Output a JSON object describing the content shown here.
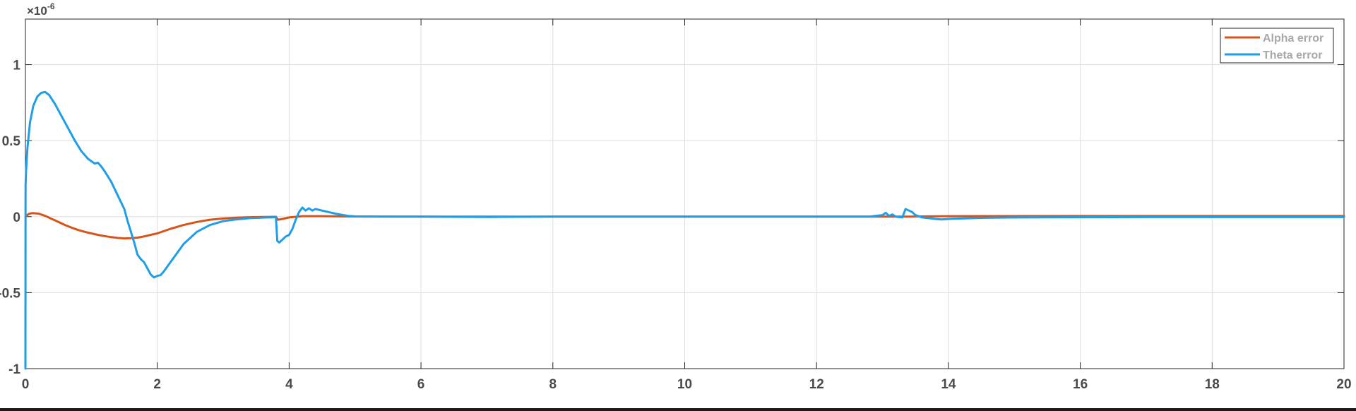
{
  "chart_data": {
    "type": "line",
    "title": "",
    "xlabel": "",
    "ylabel": "",
    "xlim": [
      0,
      20
    ],
    "ylim": [
      -1,
      1.3
    ],
    "xticks": [
      0,
      2,
      4,
      6,
      8,
      10,
      12,
      14,
      16,
      18,
      20
    ],
    "yticks": [
      -1,
      -0.5,
      0,
      0.5,
      1
    ],
    "ytick_labels": [
      "-1",
      "-0.5",
      "0",
      "0.5",
      "1"
    ],
    "y_exponent_label": "×10",
    "y_exponent_power": "-6",
    "grid": true,
    "legend_position": "top-right",
    "series": [
      {
        "name": "Alpha error",
        "color": "#d95319",
        "x": [
          0,
          0.05,
          0.1,
          0.2,
          0.3,
          0.4,
          0.5,
          0.6,
          0.7,
          0.8,
          0.9,
          1.0,
          1.1,
          1.2,
          1.3,
          1.4,
          1.5,
          1.6,
          1.7,
          1.8,
          1.9,
          2.0,
          2.2,
          2.4,
          2.6,
          2.8,
          3.0,
          3.2,
          3.4,
          3.6,
          3.8,
          3.83,
          3.9,
          4.0,
          4.2,
          4.5,
          5.0,
          6,
          8,
          10,
          12,
          13.0,
          13.4,
          13.7,
          14,
          16,
          18,
          20
        ],
        "y": [
          0.0,
          0.018,
          0.023,
          0.02,
          0.005,
          -0.015,
          -0.035,
          -0.055,
          -0.072,
          -0.088,
          -0.1,
          -0.11,
          -0.12,
          -0.128,
          -0.135,
          -0.14,
          -0.143,
          -0.142,
          -0.138,
          -0.13,
          -0.12,
          -0.11,
          -0.08,
          -0.055,
          -0.035,
          -0.02,
          -0.012,
          -0.007,
          -0.004,
          -0.002,
          -0.001,
          -0.02,
          -0.015,
          -0.005,
          0.003,
          0.003,
          0.001,
          0.0,
          0.0,
          0.0,
          0.0,
          0.0,
          0.0,
          0.002,
          0.003,
          0.004,
          0.004,
          0.004
        ]
      },
      {
        "name": "Theta error",
        "color": "#1f9ee8",
        "x": [
          0,
          0.002,
          0.01,
          0.03,
          0.07,
          0.12,
          0.18,
          0.24,
          0.3,
          0.36,
          0.45,
          0.55,
          0.65,
          0.75,
          0.85,
          0.95,
          1.05,
          1.1,
          1.15,
          1.2,
          1.3,
          1.4,
          1.5,
          1.55,
          1.6,
          1.65,
          1.7,
          1.75,
          1.8,
          1.85,
          1.9,
          1.95,
          2.0,
          2.05,
          2.1,
          2.2,
          2.4,
          2.6,
          2.8,
          3.0,
          3.2,
          3.4,
          3.6,
          3.78,
          3.8,
          3.82,
          3.85,
          3.9,
          3.95,
          4.0,
          4.05,
          4.1,
          4.15,
          4.2,
          4.25,
          4.3,
          4.35,
          4.4,
          4.5,
          4.6,
          4.7,
          4.8,
          4.9,
          5.0,
          5.5,
          6,
          7,
          8,
          9,
          10,
          11,
          12,
          12.8,
          13.0,
          13.05,
          13.1,
          13.15,
          13.2,
          13.3,
          13.35,
          13.4,
          13.45,
          13.5,
          13.6,
          13.7,
          13.8,
          13.9,
          14.0,
          14.2,
          14.5,
          15,
          16,
          17,
          18,
          19,
          20
        ],
        "y": [
          -1.0,
          0.2,
          0.3,
          0.45,
          0.62,
          0.73,
          0.79,
          0.815,
          0.82,
          0.8,
          0.74,
          0.66,
          0.58,
          0.5,
          0.43,
          0.38,
          0.35,
          0.355,
          0.33,
          0.3,
          0.23,
          0.14,
          0.05,
          -0.03,
          -0.1,
          -0.17,
          -0.25,
          -0.28,
          -0.3,
          -0.34,
          -0.38,
          -0.4,
          -0.39,
          -0.385,
          -0.36,
          -0.3,
          -0.18,
          -0.1,
          -0.055,
          -0.03,
          -0.018,
          -0.01,
          -0.006,
          -0.004,
          -0.003,
          -0.16,
          -0.17,
          -0.15,
          -0.13,
          -0.12,
          -0.08,
          -0.02,
          0.03,
          0.06,
          0.04,
          0.055,
          0.04,
          0.05,
          0.04,
          0.03,
          0.02,
          0.012,
          0.005,
          0.002,
          0.0,
          0.0,
          -0.002,
          0.0,
          0.0,
          0.0,
          0.0,
          0.0,
          0.0,
          0.01,
          0.025,
          0.005,
          0.015,
          0.0,
          -0.005,
          0.05,
          0.04,
          0.03,
          0.01,
          -0.005,
          -0.01,
          -0.015,
          -0.018,
          -0.015,
          -0.012,
          -0.008,
          -0.005,
          -0.004,
          -0.003,
          -0.003,
          -0.003,
          -0.003
        ]
      }
    ]
  }
}
